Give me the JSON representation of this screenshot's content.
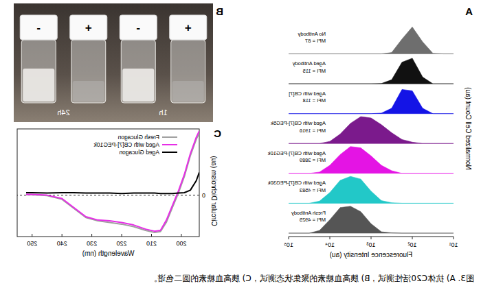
{
  "chart_data": [
    {
      "panel": "A",
      "type": "area",
      "x_label": "Fluorescence Intensity (au)",
      "y_label": "Normalized Cell Count (au)",
      "log": "x",
      "tick_labels": "x",
      "x": [
        10,
        17.8,
        31.6,
        56.2,
        100,
        177.8,
        316.2,
        562.3,
        1000,
        1778,
        3162,
        5623,
        10000,
        17783,
        31623,
        56234,
        100000
      ],
      "xlim": [
        10,
        100000
      ],
      "xticks": [
        {
          "value": 10,
          "label": "10¹"
        },
        {
          "value": 100,
          "label": "10²"
        },
        {
          "value": 1000,
          "label": "10³"
        },
        {
          "value": 10000,
          "label": "10⁴"
        },
        {
          "value": 100000,
          "label": "10⁵"
        }
      ],
      "ylim": [
        0,
        1
      ],
      "series": [
        {
          "name": "No Antibody",
          "annotation": "MFI = 87",
          "color": "#6e6e6e",
          "values": [
            0,
            0,
            0.02,
            0.45,
            1.0,
            0.55,
            0.05,
            0,
            0,
            0,
            0,
            0,
            0,
            0,
            0,
            0,
            0
          ]
        },
        {
          "name": "Aged Antibody",
          "annotation": "MFI = 115",
          "color": "#111111",
          "values": [
            0,
            0,
            0,
            0.25,
            0.95,
            0.8,
            0.15,
            0.01,
            0,
            0,
            0,
            0,
            0,
            0,
            0,
            0,
            0
          ]
        },
        {
          "name": "Aged with CB[7]",
          "annotation": "MFI = 118",
          "color": "#1414e6",
          "values": [
            0,
            0,
            0,
            0.2,
            0.85,
            0.9,
            0.2,
            0.02,
            0,
            0,
            0,
            0,
            0,
            0,
            0,
            0,
            0
          ]
        },
        {
          "name": "Aged with CB[7]-PEG5k",
          "annotation": "MFI = 1916",
          "color": "#7b1a8c",
          "values": [
            0,
            0,
            0,
            0,
            0.05,
            0.15,
            0.4,
            0.7,
            0.95,
            1.0,
            0.75,
            0.35,
            0.08,
            0,
            0,
            0,
            0
          ]
        },
        {
          "name": "Aged with CB[7]-PEG10k",
          "annotation": "MFI = 3889",
          "color": "#e414e4",
          "values": [
            0,
            0,
            0,
            0,
            0,
            0,
            0.1,
            0.3,
            0.65,
            0.95,
            1.0,
            0.7,
            0.3,
            0.05,
            0,
            0,
            0
          ]
        },
        {
          "name": "Aged with CB[7]-PEG30k",
          "annotation": "MFI = 4583",
          "color": "#22c8c8",
          "values": [
            0,
            0,
            0,
            0,
            0,
            0,
            0.02,
            0.1,
            0.45,
            0.9,
            1.0,
            0.85,
            0.4,
            0.08,
            0,
            0,
            0
          ]
        },
        {
          "name": "Fresh Antibody",
          "annotation": "MFI = 4925",
          "color": "#555555",
          "values": [
            0,
            0,
            0,
            0,
            0,
            0,
            0.01,
            0.05,
            0.35,
            0.8,
            1.0,
            0.95,
            0.5,
            0.1,
            0,
            0,
            0
          ]
        }
      ]
    },
    {
      "panel": "C",
      "type": "line",
      "x_label": "Wavelength (nm)",
      "y_label": "Circular Dichroism (au)",
      "legend": "upper left",
      "x": [
        194,
        195,
        197,
        199,
        201,
        203,
        205,
        207,
        209,
        212,
        216,
        220,
        224,
        228,
        232,
        236,
        240,
        245,
        250,
        252
      ],
      "xlim": [
        194,
        255
      ],
      "xticks": [
        200,
        210,
        220,
        230,
        240,
        250
      ],
      "ylim": [
        -1,
        1.6
      ],
      "yticks": [
        0
      ],
      "series": [
        {
          "name": "Fresh Glucagon",
          "color": "#a0a0a0",
          "values": [
            1.5,
            1.35,
            0.95,
            0.45,
            0.05,
            -0.3,
            -0.65,
            -0.88,
            -0.9,
            -0.85,
            -0.76,
            -0.7,
            -0.66,
            -0.62,
            -0.54,
            -0.32,
            -0.1,
            -0.01,
            0.01,
            0.01
          ]
        },
        {
          "name": "Aged with CB[7]-PEG10k",
          "color": "#e62ee6",
          "values": [
            1.55,
            1.4,
            1.0,
            0.5,
            0.1,
            -0.25,
            -0.6,
            -0.85,
            -0.87,
            -0.82,
            -0.72,
            -0.66,
            -0.62,
            -0.6,
            -0.52,
            -0.3,
            -0.08,
            0.0,
            0.02,
            0.02
          ]
        },
        {
          "name": "Aged Glucagon",
          "color": "#000000",
          "values": [
            0.55,
            0.35,
            0.12,
            0.06,
            0.05,
            0.04,
            0.04,
            0.04,
            0.05,
            0.05,
            0.05,
            0.04,
            0.05,
            0.05,
            0.05,
            0.06,
            0.06,
            0.05,
            0.06,
            0.06
          ]
        }
      ]
    }
  ],
  "photo": {
    "panel": "B",
    "vials": [
      {
        "sign": "+"
      },
      {
        "sign": "-"
      },
      {
        "sign": "+"
      },
      {
        "sign": "-"
      }
    ],
    "time_labels": [
      "1h",
      "24h"
    ]
  },
  "caption": "图3. A) 抗体C20活性测试，B) 胰高血糖素的聚集状态测试，C) 胰高血糖素的圆二色谱。"
}
